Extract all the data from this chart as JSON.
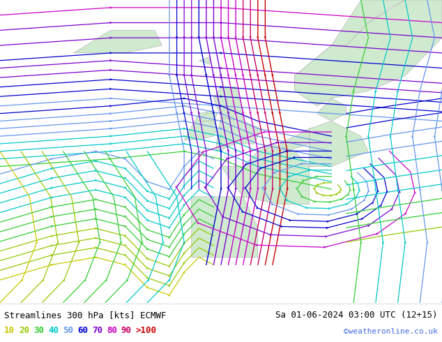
{
  "title_left": "Streamlines 300 hPa [kts] ECMWF",
  "title_right": "Sa 01-06-2024 03:00 UTC (12+15)",
  "credit": "©weatheronline.co.uk",
  "bg_color": "#e0e0e0",
  "land_color": "#d4eed4",
  "ocean_color": "#e8e8e8",
  "legend_values": [
    "10",
    "20",
    "30",
    "40",
    "50",
    "60",
    "70",
    "80",
    "90",
    ">100"
  ],
  "legend_colors": [
    "#c8c800",
    "#96c800",
    "#00c800",
    "#00c8c8",
    "#0064ff",
    "#0000c8",
    "#6400c8",
    "#c800c8",
    "#c80064",
    "#c80000"
  ],
  "speed_colors": {
    "10": "#c8c800",
    "20": "#96c800",
    "30": "#00c800",
    "40": "#00c8c8",
    "50": "#0064ff",
    "60": "#0000c8",
    "70": "#6400c8",
    "80": "#c800c8",
    "90": "#c80064",
    "100": "#c80000"
  },
  "fig_width": 6.34,
  "fig_height": 4.9,
  "dpi": 100
}
